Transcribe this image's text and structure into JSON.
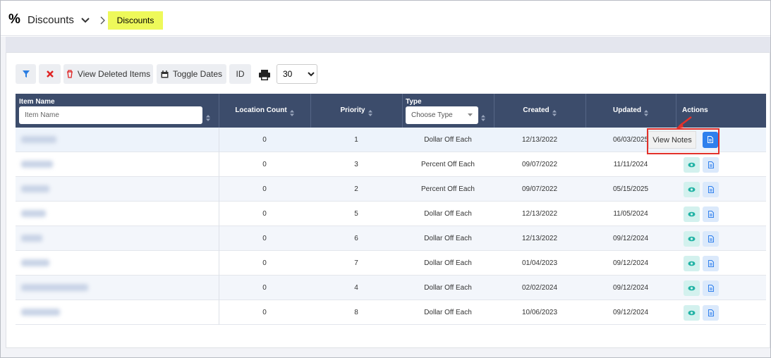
{
  "header": {
    "icon": "%",
    "title": "Discounts",
    "breadcrumb": "Discounts"
  },
  "toolbar": {
    "buttons": [
      "View Deleted Items",
      "Toggle Dates",
      "ID"
    ],
    "page_size": "30"
  },
  "table": {
    "columns": [
      "Item Name",
      "Location Count",
      "Priority",
      "Type",
      "Created",
      "Updated",
      "Actions"
    ],
    "filters": {
      "item_name": "Item Name",
      "type": "Choose Type"
    },
    "rows": [
      [
        0,
        1,
        "Dollar Off Each",
        "12/13/2022",
        "06/03/2025"
      ],
      [
        0,
        3,
        "Percent Off Each",
        "09/07/2022",
        "11/11/2024"
      ],
      [
        0,
        2,
        "Percent Off Each",
        "09/07/2022",
        "05/15/2025"
      ],
      [
        0,
        5,
        "Dollar Off Each",
        "12/13/2022",
        "11/05/2024"
      ],
      [
        0,
        6,
        "Dollar Off Each",
        "12/13/2022",
        "09/12/2024"
      ],
      [
        0,
        7,
        "Dollar Off Each",
        "01/04/2023",
        "09/12/2024"
      ],
      [
        0,
        4,
        "Dollar Off Each",
        "02/02/2024",
        "09/12/2024"
      ],
      [
        0,
        8,
        "Dollar Off Each",
        "10/06/2023",
        "09/12/2024"
      ]
    ]
  },
  "tooltip": "View Notes"
}
